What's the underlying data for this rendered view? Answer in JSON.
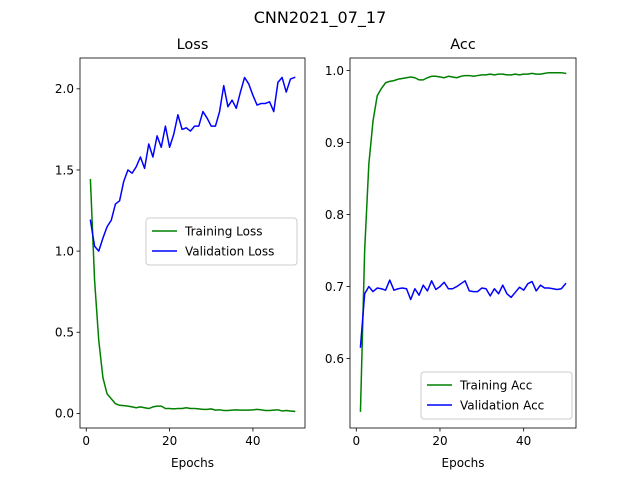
{
  "figure_title": "CNN2021_07_17",
  "chart_data": [
    {
      "type": "line",
      "title": "Loss",
      "xlabel": "Epochs",
      "ylabel": "",
      "xlim": [
        -1.5,
        52.5
      ],
      "ylim": [
        -0.09,
        2.19
      ],
      "xticks": [
        0,
        20,
        40
      ],
      "xtick_labels": [
        "0",
        "20",
        "40"
      ],
      "yticks": [
        0.0,
        0.5,
        1.0,
        1.5,
        2.0
      ],
      "ytick_labels": [
        "0.0",
        "0.5",
        "1.0",
        "1.5",
        "2.0"
      ],
      "grid": false,
      "legend_position": "center-right",
      "x": [
        1,
        2,
        3,
        4,
        5,
        6,
        7,
        8,
        9,
        10,
        11,
        12,
        13,
        14,
        15,
        16,
        17,
        18,
        19,
        20,
        21,
        22,
        23,
        24,
        25,
        26,
        27,
        28,
        29,
        30,
        31,
        32,
        33,
        34,
        35,
        36,
        37,
        38,
        39,
        40,
        41,
        42,
        43,
        44,
        45,
        46,
        47,
        48,
        49,
        50
      ],
      "series": [
        {
          "name": "Training Loss",
          "color": "#008000",
          "values": [
            1.44,
            0.82,
            0.45,
            0.22,
            0.12,
            0.09,
            0.06,
            0.05,
            0.048,
            0.045,
            0.04,
            0.035,
            0.04,
            0.035,
            0.03,
            0.04,
            0.045,
            0.045,
            0.03,
            0.03,
            0.028,
            0.03,
            0.03,
            0.035,
            0.03,
            0.03,
            0.028,
            0.025,
            0.025,
            0.028,
            0.02,
            0.022,
            0.018,
            0.018,
            0.02,
            0.022,
            0.02,
            0.02,
            0.02,
            0.022,
            0.025,
            0.022,
            0.018,
            0.018,
            0.02,
            0.022,
            0.015,
            0.018,
            0.015,
            0.012
          ]
        },
        {
          "name": "Validation Loss",
          "color": "#0000ff",
          "values": [
            1.19,
            1.03,
            1.0,
            1.08,
            1.15,
            1.19,
            1.29,
            1.31,
            1.43,
            1.5,
            1.48,
            1.52,
            1.58,
            1.51,
            1.66,
            1.58,
            1.71,
            1.64,
            1.77,
            1.64,
            1.72,
            1.84,
            1.75,
            1.76,
            1.74,
            1.77,
            1.77,
            1.86,
            1.82,
            1.77,
            1.77,
            1.86,
            2.02,
            1.89,
            1.93,
            1.88,
            1.98,
            2.07,
            2.03,
            1.96,
            1.9,
            1.91,
            1.91,
            1.92,
            1.86,
            2.04,
            2.07,
            1.98,
            2.06,
            2.07
          ]
        }
      ]
    },
    {
      "type": "line",
      "title": "Acc",
      "xlabel": "Epochs",
      "ylabel": "",
      "xlim": [
        -1.5,
        52.5
      ],
      "ylim": [
        0.5036,
        1.0174
      ],
      "xticks": [
        0,
        20,
        40
      ],
      "xtick_labels": [
        "0",
        "20",
        "40"
      ],
      "yticks": [
        0.6,
        0.7,
        0.8,
        0.9,
        1.0
      ],
      "ytick_labels": [
        "0.6",
        "0.7",
        "0.8",
        "0.9",
        "1.0"
      ],
      "grid": false,
      "legend_position": "lower-right",
      "x": [
        1,
        2,
        3,
        4,
        5,
        6,
        7,
        8,
        9,
        10,
        11,
        12,
        13,
        14,
        15,
        16,
        17,
        18,
        19,
        20,
        21,
        22,
        23,
        24,
        25,
        26,
        27,
        28,
        29,
        30,
        31,
        32,
        33,
        34,
        35,
        36,
        37,
        38,
        39,
        40,
        41,
        42,
        43,
        44,
        45,
        46,
        47,
        48,
        49,
        50
      ],
      "series": [
        {
          "name": "Training Acc",
          "color": "#008000",
          "values": [
            0.527,
            0.75,
            0.87,
            0.93,
            0.965,
            0.975,
            0.983,
            0.985,
            0.986,
            0.988,
            0.989,
            0.99,
            0.991,
            0.99,
            0.987,
            0.987,
            0.99,
            0.992,
            0.992,
            0.991,
            0.99,
            0.992,
            0.991,
            0.99,
            0.992,
            0.993,
            0.993,
            0.992,
            0.993,
            0.994,
            0.994,
            0.995,
            0.994,
            0.995,
            0.995,
            0.994,
            0.994,
            0.995,
            0.994,
            0.995,
            0.995,
            0.996,
            0.995,
            0.995,
            0.996,
            0.997,
            0.997,
            0.997,
            0.997,
            0.996
          ]
        },
        {
          "name": "Validation Acc",
          "color": "#0000ff",
          "values": [
            0.616,
            0.69,
            0.7,
            0.693,
            0.698,
            0.697,
            0.695,
            0.709,
            0.695,
            0.697,
            0.698,
            0.697,
            0.682,
            0.697,
            0.688,
            0.702,
            0.694,
            0.708,
            0.696,
            0.7,
            0.706,
            0.697,
            0.697,
            0.7,
            0.704,
            0.708,
            0.694,
            0.693,
            0.693,
            0.698,
            0.697,
            0.687,
            0.697,
            0.69,
            0.702,
            0.69,
            0.685,
            0.692,
            0.699,
            0.695,
            0.704,
            0.707,
            0.694,
            0.702,
            0.698,
            0.698,
            0.697,
            0.696,
            0.697,
            0.704
          ]
        }
      ]
    }
  ]
}
